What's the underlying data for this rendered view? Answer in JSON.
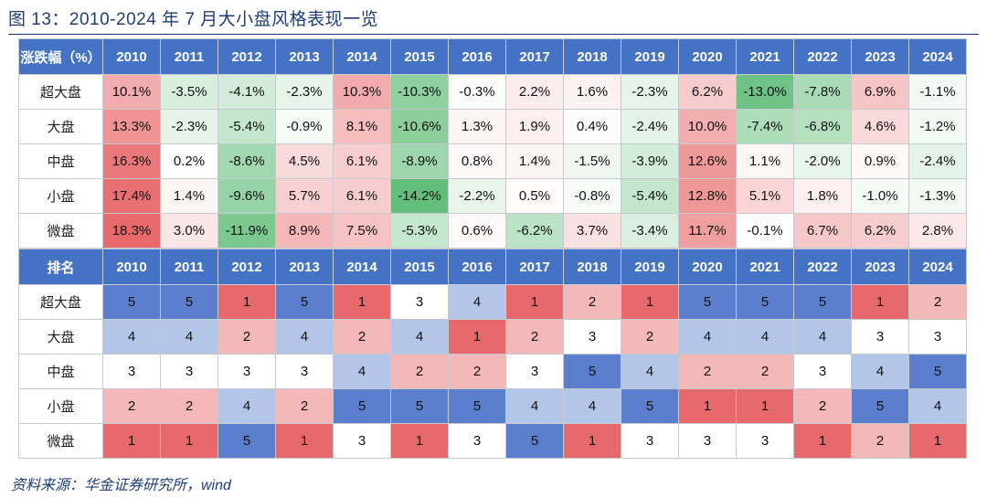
{
  "title": "图 13：2010-2024 年 7 月大小盘风格表现一览",
  "source": "资料来源：华金证券研究所，wind",
  "colors": {
    "header": "#4472c4",
    "ret_pos_strong": "#e8696b",
    "ret_neg_strong": "#63be7b",
    "rank_1": "#e8696b",
    "rank_2": "#f4b8b9",
    "rank_3": "#ffffff",
    "rank_4": "#b4c6e7",
    "rank_5": "#5b7fcc"
  },
  "returns_table": {
    "header_label": "涨跌幅（%）",
    "years": [
      "2010",
      "2011",
      "2012",
      "2013",
      "2014",
      "2015",
      "2016",
      "2017",
      "2018",
      "2019",
      "2020",
      "2021",
      "2022",
      "2023",
      "2024"
    ],
    "rows": [
      {
        "label": "超大盘",
        "values": [
          "10.1%",
          "-3.5%",
          "-4.1%",
          "-2.3%",
          "10.3%",
          "-10.3%",
          "-0.3%",
          "2.2%",
          "1.6%",
          "-2.3%",
          "6.2%",
          "-13.0%",
          "-7.8%",
          "6.9%",
          "-1.1%"
        ]
      },
      {
        "label": "大盘",
        "values": [
          "13.3%",
          "-2.3%",
          "-5.4%",
          "-0.9%",
          "8.1%",
          "-10.6%",
          "1.3%",
          "1.9%",
          "0.4%",
          "-2.4%",
          "10.0%",
          "-7.4%",
          "-6.8%",
          "4.6%",
          "-1.2%"
        ]
      },
      {
        "label": "中盘",
        "values": [
          "16.3%",
          "0.2%",
          "-8.6%",
          "4.5%",
          "6.1%",
          "-8.9%",
          "0.8%",
          "1.4%",
          "-1.5%",
          "-3.9%",
          "12.6%",
          "1.1%",
          "-2.0%",
          "0.9%",
          "-2.4%"
        ]
      },
      {
        "label": "小盘",
        "values": [
          "17.4%",
          "1.4%",
          "-9.6%",
          "5.7%",
          "6.1%",
          "-14.2%",
          "-2.2%",
          "0.5%",
          "-0.8%",
          "-5.4%",
          "12.8%",
          "5.1%",
          "1.8%",
          "-1.0%",
          "-1.3%"
        ]
      },
      {
        "label": "微盘",
        "values": [
          "18.3%",
          "3.0%",
          "-11.9%",
          "8.9%",
          "7.5%",
          "-5.3%",
          "0.6%",
          "-6.2%",
          "3.7%",
          "-3.4%",
          "11.7%",
          "-0.1%",
          "6.7%",
          "6.2%",
          "2.8%"
        ]
      }
    ]
  },
  "rank_table": {
    "header_label": "排名",
    "years": [
      "2010",
      "2011",
      "2012",
      "2013",
      "2014",
      "2015",
      "2016",
      "2017",
      "2018",
      "2019",
      "2020",
      "2021",
      "2022",
      "2023",
      "2024"
    ],
    "rows": [
      {
        "label": "超大盘",
        "values": [
          "5",
          "5",
          "1",
          "5",
          "1",
          "3",
          "4",
          "1",
          "2",
          "1",
          "5",
          "5",
          "5",
          "1",
          "2"
        ]
      },
      {
        "label": "大盘",
        "values": [
          "4",
          "4",
          "2",
          "4",
          "2",
          "4",
          "1",
          "2",
          "3",
          "2",
          "4",
          "4",
          "4",
          "3",
          "3"
        ]
      },
      {
        "label": "中盘",
        "values": [
          "3",
          "3",
          "3",
          "3",
          "4",
          "2",
          "2",
          "3",
          "5",
          "4",
          "2",
          "2",
          "3",
          "4",
          "5"
        ]
      },
      {
        "label": "小盘",
        "values": [
          "2",
          "2",
          "4",
          "2",
          "5",
          "5",
          "5",
          "4",
          "4",
          "5",
          "1",
          "1",
          "2",
          "5",
          "4"
        ]
      },
      {
        "label": "微盘",
        "values": [
          "1",
          "1",
          "5",
          "1",
          "3",
          "1",
          "3",
          "5",
          "1",
          "3",
          "3",
          "3",
          "1",
          "2",
          "1"
        ]
      }
    ]
  }
}
